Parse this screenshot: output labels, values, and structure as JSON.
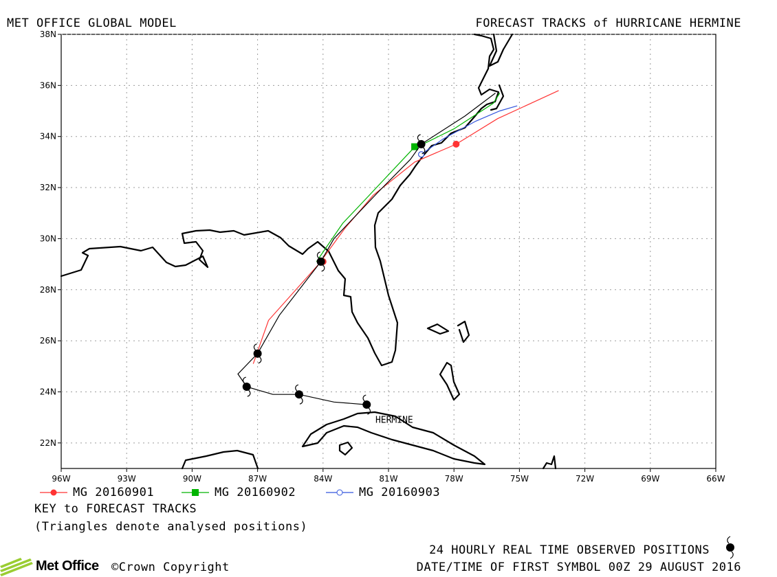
{
  "header": {
    "left_title": "MET OFFICE GLOBAL MODEL",
    "right_title": "FORECAST TRACKS of HURRICANE HERMINE"
  },
  "map": {
    "lon_range": [
      -96,
      -66
    ],
    "lat_range": [
      21,
      38
    ],
    "x_ticks": [
      {
        "lon": -96,
        "label": "96W"
      },
      {
        "lon": -93,
        "label": "93W"
      },
      {
        "lon": -90,
        "label": "90W"
      },
      {
        "lon": -87,
        "label": "87W"
      },
      {
        "lon": -84,
        "label": "84W"
      },
      {
        "lon": -81,
        "label": "81W"
      },
      {
        "lon": -78,
        "label": "78W"
      },
      {
        "lon": -75,
        "label": "75W"
      },
      {
        "lon": -72,
        "label": "72W"
      },
      {
        "lon": -69,
        "label": "69W"
      },
      {
        "lon": -66,
        "label": "66W"
      }
    ],
    "y_ticks": [
      {
        "lat": 22,
        "label": "22N"
      },
      {
        "lat": 24,
        "label": "24N"
      },
      {
        "lat": 26,
        "label": "26N"
      },
      {
        "lat": 28,
        "label": "28N"
      },
      {
        "lat": 30,
        "label": "30N"
      },
      {
        "lat": 32,
        "label": "32N"
      },
      {
        "lat": 34,
        "label": "34N"
      },
      {
        "lat": 36,
        "label": "36N"
      },
      {
        "lat": 38,
        "label": "38N"
      }
    ],
    "storm_label": {
      "text": "HERMINE",
      "lon": -81.6,
      "lat": 22.9
    }
  },
  "chart_data": {
    "type": "scatter",
    "title": "FORECAST TRACKS of HURRICANE HERMINE",
    "observed_track": {
      "name": "24 HOURLY REAL TIME OBSERVED POSITIONS",
      "points": [
        [
          -82.0,
          23.5
        ],
        [
          -85.1,
          23.9
        ],
        [
          -87.5,
          24.2
        ],
        [
          -87.0,
          25.5
        ],
        [
          -84.1,
          29.1
        ],
        [
          -79.5,
          33.7
        ]
      ],
      "path": [
        [
          -82.0,
          23.5
        ],
        [
          -83.5,
          23.6
        ],
        [
          -85.1,
          23.9
        ],
        [
          -86.3,
          23.9
        ],
        [
          -87.5,
          24.2
        ],
        [
          -87.9,
          24.7
        ],
        [
          -87.0,
          25.5
        ],
        [
          -86.0,
          27.0
        ],
        [
          -84.1,
          29.1
        ],
        [
          -83.5,
          30.0
        ],
        [
          -81.5,
          31.8
        ],
        [
          -80.0,
          33.1
        ],
        [
          -79.5,
          33.7
        ],
        [
          -77.5,
          34.8
        ],
        [
          -76.1,
          35.7
        ]
      ]
    },
    "series": [
      {
        "name": "MG 20160901",
        "color": "#ff3333",
        "marker": "circle-filled",
        "track": [
          [
            -87.2,
            25.1
          ],
          [
            -86.5,
            26.8
          ],
          [
            -84.2,
            29.0
          ],
          [
            -83.0,
            30.4
          ],
          [
            -81.7,
            31.7
          ],
          [
            -79.8,
            33.0
          ],
          [
            -77.9,
            33.7
          ],
          [
            -76.0,
            34.7
          ],
          [
            -73.2,
            35.8
          ]
        ],
        "markers": [
          [
            -84.0,
            29.1
          ],
          [
            -77.9,
            33.7
          ]
        ]
      },
      {
        "name": "MG 20160902",
        "color": "#00b400",
        "marker": "square-filled",
        "track": [
          [
            -84.3,
            29.1
          ],
          [
            -83.1,
            30.6
          ],
          [
            -82.1,
            31.5
          ],
          [
            -79.9,
            33.5
          ],
          [
            -78.0,
            34.3
          ],
          [
            -76.2,
            35.3
          ],
          [
            -75.9,
            35.7
          ]
        ],
        "markers": [
          [
            -79.8,
            33.6
          ]
        ]
      },
      {
        "name": "MG 20160903",
        "color": "#3355dd",
        "marker": "circle-open",
        "track": [
          [
            -79.5,
            33.3
          ],
          [
            -78.5,
            33.9
          ],
          [
            -77.0,
            34.6
          ],
          [
            -75.9,
            35.0
          ],
          [
            -75.1,
            35.2
          ]
        ],
        "markers": [
          [
            -79.5,
            33.3
          ]
        ]
      }
    ],
    "xlabel": "",
    "ylabel": ""
  },
  "legend": [
    {
      "label": "MG 20160901",
      "color": "#ff3333",
      "marker": "circle-filled"
    },
    {
      "label": "MG 20160902",
      "color": "#00b400",
      "marker": "square-filled"
    },
    {
      "label": "MG 20160903",
      "color": "#3355dd",
      "marker": "circle-open"
    }
  ],
  "key": {
    "title": "KEY to FORECAST TRACKS",
    "note": "(Triangles denote analysed positions)"
  },
  "footer": {
    "observed_label": "24 HOURLY REAL TIME OBSERVED POSITIONS",
    "datetime_label": "DATE/TIME OF FIRST SYMBOL 00Z 29 AUGUST 2016",
    "logo_text": "Met Office",
    "copyright": "©Crown Copyright"
  }
}
